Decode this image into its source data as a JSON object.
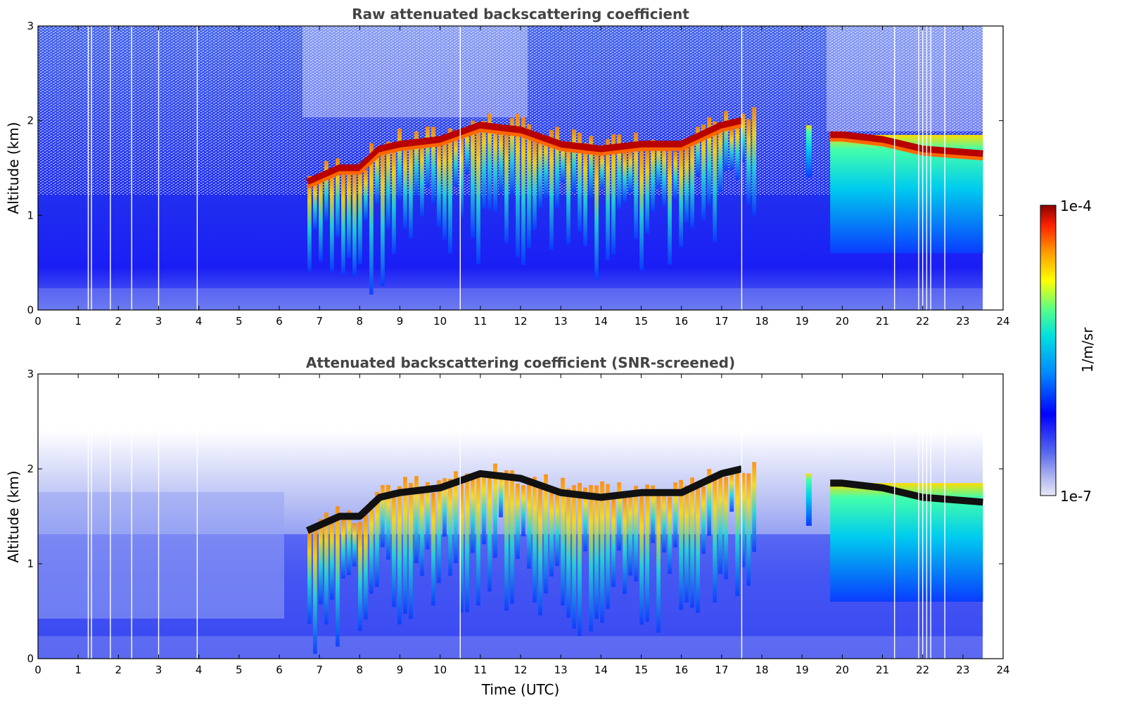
{
  "chart_data": [
    {
      "type": "heatmap",
      "title": "Raw attenuated backscattering coefficient",
      "xlabel": "",
      "ylabel": "Altitude (km)",
      "xlim": [
        0,
        24
      ],
      "ylim": [
        0,
        3
      ],
      "x_ticks": [
        "0",
        "1",
        "2",
        "3",
        "4",
        "5",
        "6",
        "7",
        "8",
        "9",
        "10",
        "11",
        "12",
        "13",
        "14",
        "15",
        "16",
        "17",
        "18",
        "19",
        "20",
        "21",
        "22",
        "23",
        "24"
      ],
      "y_ticks": [
        "0",
        "1",
        "2",
        "3"
      ],
      "data_extent_hours": [
        0,
        23.5
      ],
      "layer_top_km": [
        [
          6.7,
          1.35
        ],
        [
          7.5,
          1.5
        ],
        [
          8,
          1.5
        ],
        [
          8.5,
          1.7
        ],
        [
          9,
          1.75
        ],
        [
          10,
          1.8
        ],
        [
          11,
          1.95
        ],
        [
          12,
          1.9
        ],
        [
          13,
          1.75
        ],
        [
          14,
          1.7
        ],
        [
          15,
          1.75
        ],
        [
          16,
          1.75
        ],
        [
          17,
          1.95
        ],
        [
          17.5,
          2.0
        ],
        [
          19.2,
          1.95
        ],
        [
          19.7,
          1.85
        ],
        [
          20,
          1.85
        ],
        [
          21,
          1.8
        ],
        [
          22,
          1.7
        ],
        [
          23.5,
          1.65
        ]
      ],
      "scale": "log"
    },
    {
      "type": "heatmap",
      "title": "Attenuated backscattering coefficient (SNR-screened)",
      "xlabel": "Time (UTC)",
      "ylabel": "Altitude (km)",
      "xlim": [
        0,
        24
      ],
      "ylim": [
        0,
        3
      ],
      "x_ticks": [
        "0",
        "1",
        "2",
        "3",
        "4",
        "5",
        "6",
        "7",
        "8",
        "9",
        "10",
        "11",
        "12",
        "13",
        "14",
        "15",
        "16",
        "17",
        "18",
        "19",
        "20",
        "21",
        "22",
        "23",
        "24"
      ],
      "y_ticks": [
        "0",
        "1",
        "2",
        "3"
      ],
      "data_extent_hours": [
        0,
        23.5
      ],
      "scale": "log"
    }
  ],
  "colorbar": {
    "label": "1/m/sr",
    "max_label": "1e-4",
    "min_label": "1e-7",
    "colors": [
      "#e8e8f8",
      "#aab0f0",
      "#5566ee",
      "#0000ff",
      "#0088ff",
      "#00e0e0",
      "#55ff88",
      "#ffff00",
      "#ff9900",
      "#ff2200",
      "#8b0000"
    ]
  }
}
